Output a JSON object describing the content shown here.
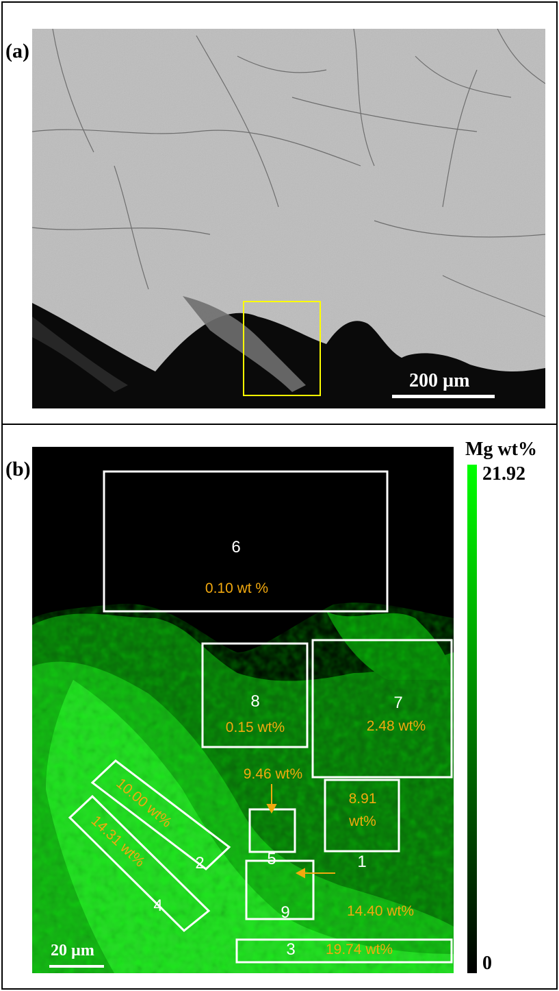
{
  "panel_a": {
    "label": "(a)",
    "scale_bar": "200 µm"
  },
  "panel_b": {
    "label": "(b)",
    "scale_bar": "20 µm",
    "colorbar": {
      "title": "Mg wt%",
      "max": "21.92",
      "min": "0",
      "top_color": "#00ff00",
      "bottom_color": "#000000"
    },
    "regions": [
      {
        "id": "6",
        "value": "0.10 wt %"
      },
      {
        "id": "8",
        "value": "0.15 wt%"
      },
      {
        "id": "7",
        "value": "2.48 wt%"
      },
      {
        "id": "2",
        "value": "10.00 wt%"
      },
      {
        "id": "4",
        "value": "14.31 wt%"
      },
      {
        "id": "5",
        "value": "9.46 wt%"
      },
      {
        "id": "1",
        "value_line1": "8.91",
        "value_line2": "wt%"
      },
      {
        "id": "9",
        "value": "14.40 wt%"
      },
      {
        "id": "3",
        "value": "19.74 wt%"
      }
    ]
  },
  "colors": {
    "box_a": "#ffff00",
    "region_box": "#ffffff",
    "value_text": "#f2a90f"
  }
}
